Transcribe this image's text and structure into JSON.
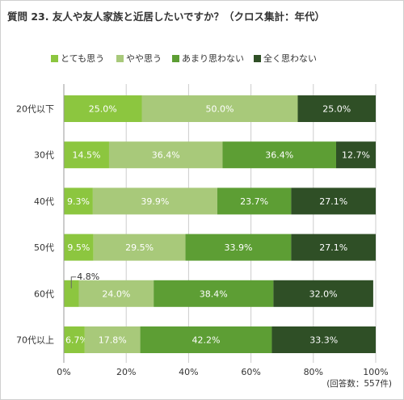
{
  "title": "質問 23. 友人や友人家族と近居したいですか？（クロス集計：年代）",
  "footnote": "(回答数：557件)",
  "chart_data": {
    "type": "bar",
    "orientation": "horizontal",
    "stacked": true,
    "legend_position": "top",
    "categories": [
      "20代以下",
      "30代",
      "40代",
      "50代",
      "60代",
      "70代以上"
    ],
    "series": [
      {
        "name": "とても思う",
        "color": "#8cc63f",
        "values": [
          25.0,
          14.5,
          9.3,
          9.5,
          4.8,
          6.7
        ]
      },
      {
        "name": "やや思う",
        "color": "#a8c97a",
        "values": [
          50.0,
          36.4,
          39.9,
          29.5,
          24.0,
          17.8
        ]
      },
      {
        "name": "あまり思わない",
        "color": "#5d9e34",
        "values": [
          0.0,
          36.4,
          23.7,
          33.9,
          38.4,
          42.2
        ]
      },
      {
        "name": "全く思わない",
        "color": "#2f4f26",
        "values": [
          25.0,
          12.7,
          27.1,
          27.1,
          32.0,
          33.3
        ]
      }
    ],
    "xlim": [
      0,
      100
    ],
    "x_ticks": [
      "0%",
      "20%",
      "40%",
      "60%",
      "80%",
      "100%"
    ],
    "callouts": [
      {
        "category": "60代",
        "series": "とても思う",
        "label": "4.8%"
      }
    ],
    "grid": true
  }
}
